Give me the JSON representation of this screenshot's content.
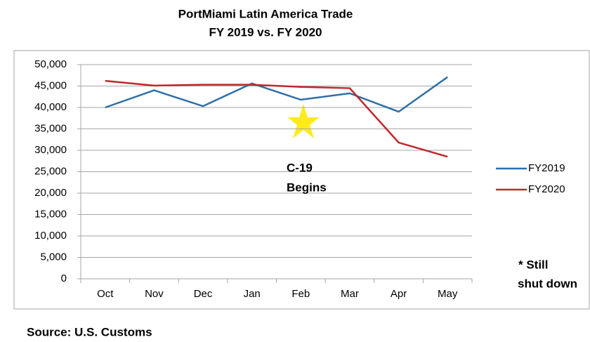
{
  "chart_data": {
    "type": "line",
    "title": "PortMiami Latin America Trade",
    "subtitle": "FY 2019 vs. FY 2020",
    "categories": [
      "Oct",
      "Nov",
      "Dec",
      "Jan",
      "Feb",
      "Mar",
      "Apr",
      "May"
    ],
    "series": [
      {
        "name": "FY2019",
        "color": "#2e6fa7",
        "values": [
          40000,
          44000,
          40300,
          45600,
          41800,
          43300,
          39000,
          47100
        ]
      },
      {
        "name": "FY2020",
        "color": "#c0282d",
        "values": [
          46200,
          45100,
          45300,
          45300,
          44800,
          44500,
          31800,
          28500
        ]
      }
    ],
    "ylim": [
      0,
      50000
    ],
    "yticks": [
      0,
      {
        "value": 5000,
        "label": "5,000"
      },
      {
        "value": 10000,
        "label": "10,000"
      },
      {
        "value": 15000,
        "label": "15,000"
      },
      {
        "value": 20000,
        "label": "20,000"
      },
      {
        "value": 25000,
        "label": "25,000"
      },
      {
        "value": 30000,
        "label": "30,000"
      },
      {
        "value": 35000,
        "label": "35,000"
      },
      {
        "value": 40000,
        "label": "40,000"
      },
      {
        "value": 45000,
        "label": "45,000"
      },
      {
        "value": 50000,
        "label": "50,000"
      }
    ],
    "grid": true,
    "legend": "right",
    "annotations": [
      "C-19",
      "Begins",
      "* Still",
      "shut down"
    ],
    "source": "Source: U.S. Customs"
  }
}
